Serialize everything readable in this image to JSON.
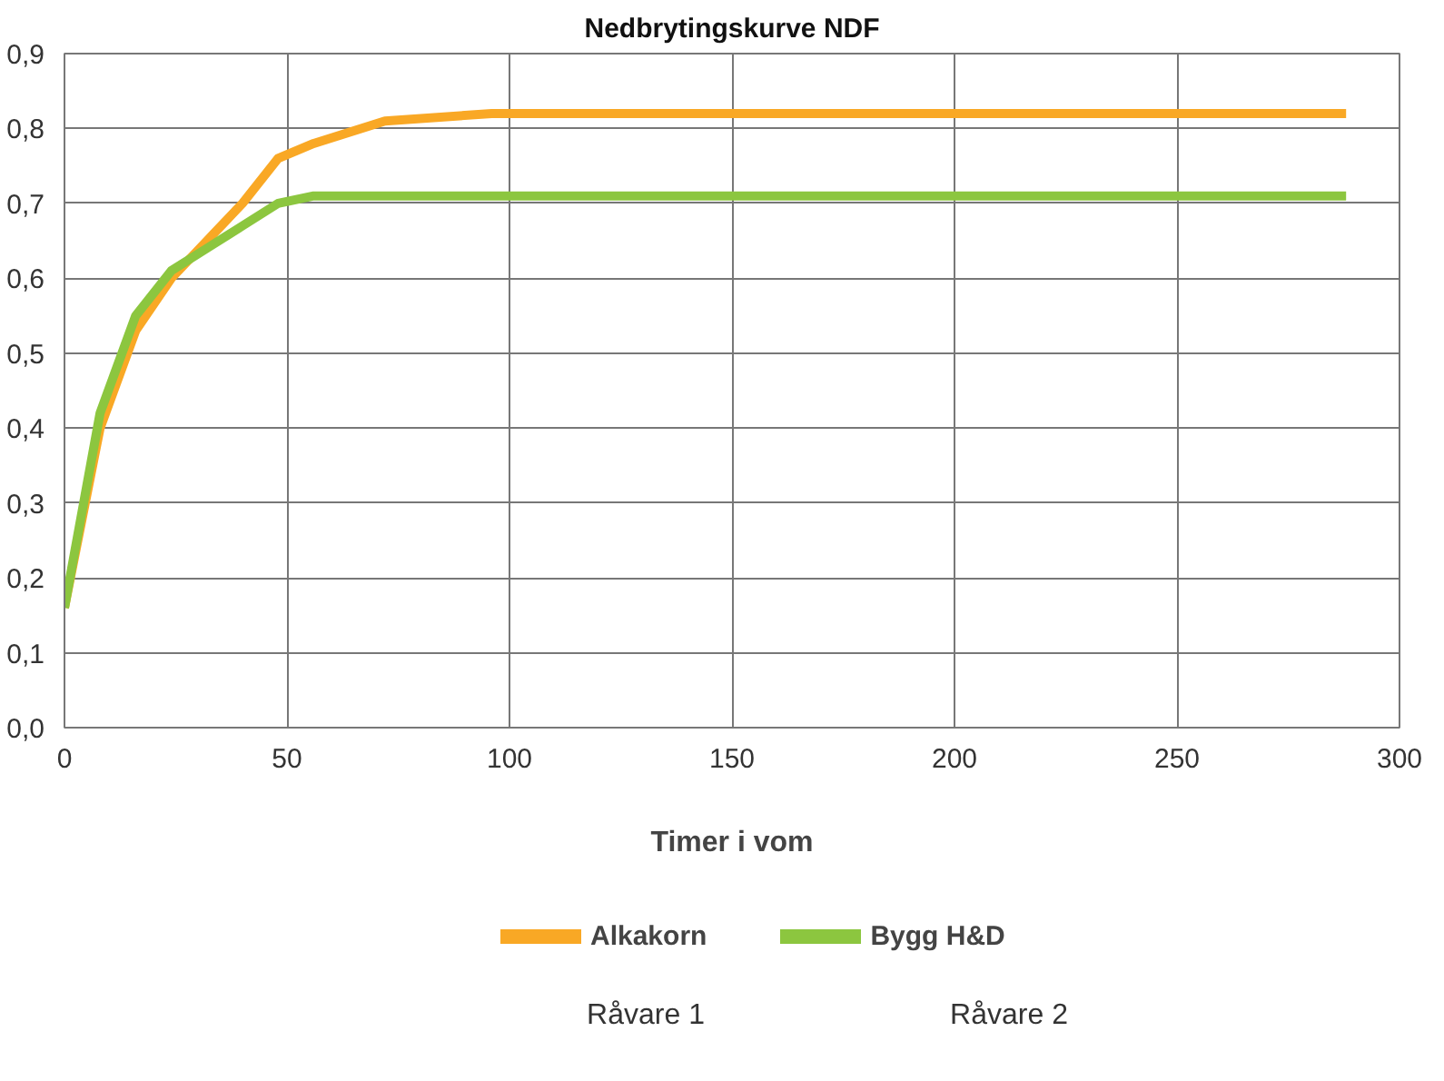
{
  "chart_data": {
    "type": "line",
    "title": "Nedbrytingskurve NDF",
    "xlabel": "Timer i vom",
    "x": [
      0,
      8,
      16,
      24,
      32,
      40,
      48,
      56,
      72,
      96,
      288
    ],
    "series": [
      {
        "name": "Alkakorn",
        "color": "#f9a825",
        "values": [
          0.16,
          0.4,
          0.53,
          0.6,
          0.65,
          0.7,
          0.76,
          0.78,
          0.81,
          0.82,
          0.82
        ]
      },
      {
        "name": "Bygg H&D",
        "color": "#8cc63f",
        "values": [
          0.16,
          0.42,
          0.55,
          0.61,
          0.64,
          0.67,
          0.7,
          0.71,
          0.71,
          0.71,
          0.71
        ]
      }
    ],
    "xlim": [
      0,
      300
    ],
    "xticks": [
      0,
      50,
      100,
      150,
      200,
      250,
      300
    ],
    "ylim": [
      0,
      0.9
    ],
    "yticks": [
      {
        "value": 0,
        "label": "0,0"
      },
      {
        "value": 0.1,
        "label": "0,1"
      },
      {
        "value": 0.2,
        "label": "0,2"
      },
      {
        "value": 0.3,
        "label": "0,3"
      },
      {
        "value": 0.4,
        "label": "0,4"
      },
      {
        "value": 0.5,
        "label": "0,5"
      },
      {
        "value": 0.6,
        "label": "0,6"
      },
      {
        "value": 0.7,
        "label": "0,7"
      },
      {
        "value": 0.8,
        "label": "0,8"
      },
      {
        "value": 0.9,
        "label": "0,9"
      }
    ],
    "grid": true,
    "legend": "bottom",
    "marker": "none",
    "line_style": "solid",
    "annotations": [
      "Råvare 1",
      "Råvare 2"
    ]
  }
}
